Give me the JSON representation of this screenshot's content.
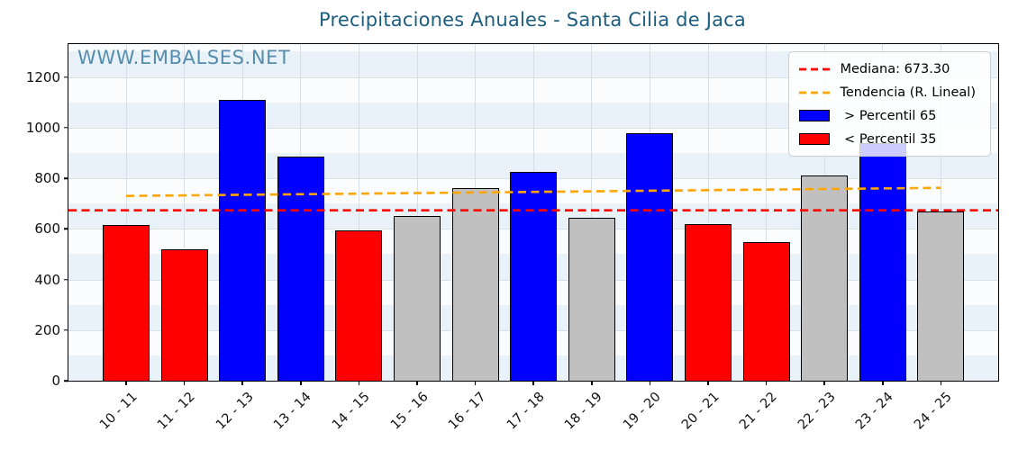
{
  "chart_data": {
    "type": "bar",
    "title": "Precipitaciones Anuales - Santa Cilia de Jaca",
    "watermark": "WWW.EMBALSES.NET",
    "categories": [
      "10 - 11",
      "11 - 12",
      "12 - 13",
      "13 - 14",
      "14 - 15",
      "15 - 16",
      "16 - 17",
      "17 - 18",
      "18 - 19",
      "19 - 20",
      "20 - 21",
      "21 - 22",
      "22 - 23",
      "23 - 24",
      "24 - 25"
    ],
    "values": [
      617,
      520,
      1110,
      887,
      595,
      650,
      762,
      825,
      642,
      978,
      620,
      548,
      812,
      938,
      670
    ],
    "bar_classes": [
      "below",
      "below",
      "above",
      "above",
      "below",
      "mid",
      "mid",
      "above",
      "mid",
      "above",
      "below",
      "below",
      "mid",
      "above",
      "mid"
    ],
    "class_colors": {
      "above": "#0000ff",
      "below": "#ff0000",
      "mid": "#c0c0c0"
    },
    "median_value": 673.3,
    "trend": {
      "start_value": 730,
      "end_value": 762
    },
    "ylim": [
      0,
      1330
    ],
    "yticks": [
      0,
      200,
      400,
      600,
      800,
      1000,
      1200
    ],
    "xlabel": "",
    "ylabel": "",
    "grid": true,
    "legend_position": "upper right",
    "legend_items": [
      {
        "style": "dashed-line",
        "color": "#ff0000",
        "label": "Mediana: 673.30"
      },
      {
        "style": "dashed-line",
        "color": "#ffa500",
        "label": "Tendencia (R. Lineal)"
      },
      {
        "style": "patch",
        "color": "#0000ff",
        "label": " > Percentil 65"
      },
      {
        "style": "patch",
        "color": "#ff0000",
        "label": " < Percentil 35"
      }
    ],
    "colors": {
      "title": "#1d5d7f",
      "watermark": "#4d87aa",
      "median_line": "#ff0000",
      "trend_line": "#ffa500",
      "band_light": "#e9f2f8",
      "band_white": "#fafcfd"
    }
  }
}
